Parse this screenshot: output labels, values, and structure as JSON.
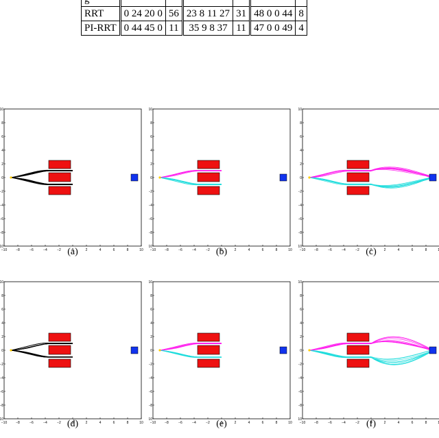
{
  "table": {
    "rows": [
      [
        "g",
        "",
        "",
        "",
        "",
        "",
        ""
      ],
      [
        "RRT",
        "0 24 20 0",
        "56",
        "23 8 11 27",
        "31",
        "48 0 0 44",
        "8"
      ],
      [
        "PI-RRT",
        "0 44 45 0",
        "11",
        "35 9 8 37",
        "11",
        "47 0 0 49",
        "4"
      ]
    ]
  },
  "axes": {
    "xticks": [
      "−10",
      "−8",
      "−6",
      "−4",
      "−2",
      "0",
      "2",
      "4",
      "6",
      "8",
      "10"
    ],
    "yticks": [
      "10",
      "8",
      "6",
      "4",
      "2",
      "0",
      "−2",
      "−4",
      "−6",
      "−8",
      "−10"
    ]
  },
  "panels": [
    {
      "caption": "(a)",
      "style": "black",
      "goal": false,
      "slot": "right"
    },
    {
      "caption": "(b)",
      "style": "color",
      "goal": false,
      "slot": "right"
    },
    {
      "caption": "(c)",
      "style": "color",
      "goal": true,
      "slot": "right"
    },
    {
      "caption": "(d)",
      "style": "black",
      "goal": false,
      "slot": "center"
    },
    {
      "caption": "(e)",
      "style": "color",
      "goal": false,
      "slot": "center"
    },
    {
      "caption": "(f)",
      "style": "color",
      "goal": true,
      "slot": "center"
    }
  ],
  "colors": {
    "obstacle": "#ee1111",
    "target": "#1133ee",
    "start": "#ffcc00",
    "upper_paths": "#ff22ee",
    "lower_paths": "#22dddd",
    "black_paths": "#000000"
  }
}
